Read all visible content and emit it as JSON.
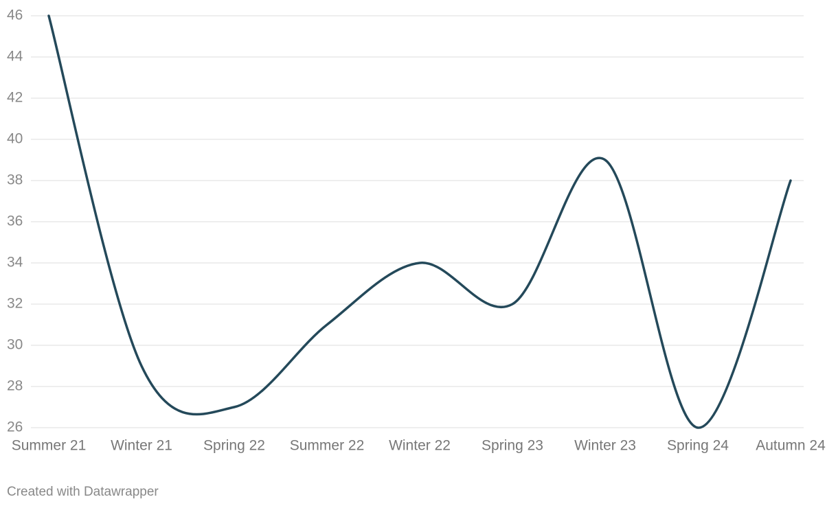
{
  "chart_data": {
    "type": "line",
    "categories": [
      "Summer 21",
      "Winter 21",
      "Spring 22",
      "Summer 22",
      "Winter 22",
      "Spring 23",
      "Winter 23",
      "Spring 24",
      "Autumn 24"
    ],
    "series": [
      {
        "color": "#24495a",
        "values": [
          46,
          29,
          27,
          31,
          34,
          32,
          39,
          26,
          38
        ]
      }
    ],
    "ylim": [
      26,
      46
    ],
    "yticks": [
      26,
      28,
      30,
      32,
      34,
      36,
      38,
      40,
      42,
      44,
      46
    ],
    "grid": true,
    "footer": "Created with Datawrapper"
  }
}
